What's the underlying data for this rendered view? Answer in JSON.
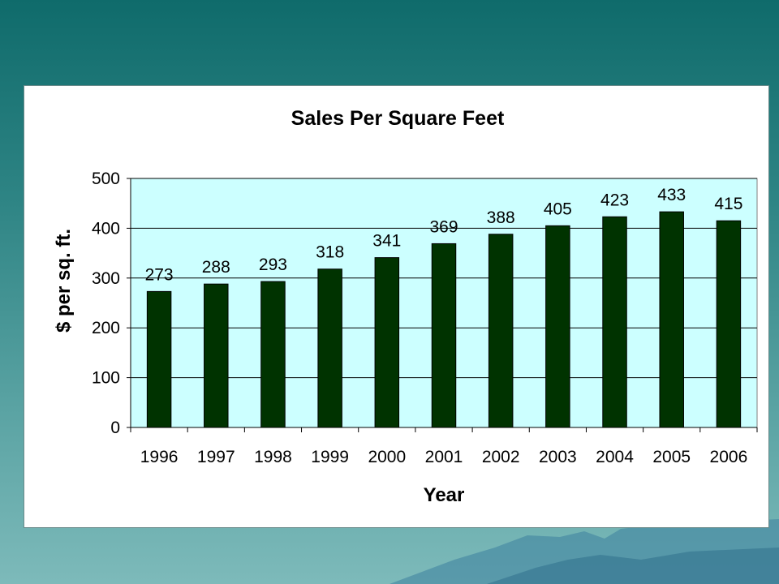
{
  "colors": {
    "background_top": "#0f6b6b",
    "background_bottom": "#7dbaba",
    "plot_area": "#ccffff",
    "bar_fill": "#003300",
    "panel": "#ffffff",
    "gridline": "#000000"
  },
  "chart_data": {
    "type": "bar",
    "title": "Sales Per Square Feet",
    "xlabel": "Year",
    "ylabel": "$ per sq. ft.",
    "categories": [
      "1996",
      "1997",
      "1998",
      "1999",
      "2000",
      "2001",
      "2002",
      "2003",
      "2004",
      "2005",
      "2006"
    ],
    "values": [
      273,
      288,
      293,
      318,
      341,
      369,
      388,
      405,
      423,
      433,
      415
    ],
    "data_labels": [
      "273",
      "288",
      "293",
      "318",
      "341",
      "369",
      "388",
      "405",
      "423",
      "433",
      "415"
    ],
    "ylim": [
      0,
      500
    ],
    "yticks": [
      "0",
      "100",
      "200",
      "300",
      "400",
      "500"
    ],
    "grid": true,
    "legend": "none"
  }
}
